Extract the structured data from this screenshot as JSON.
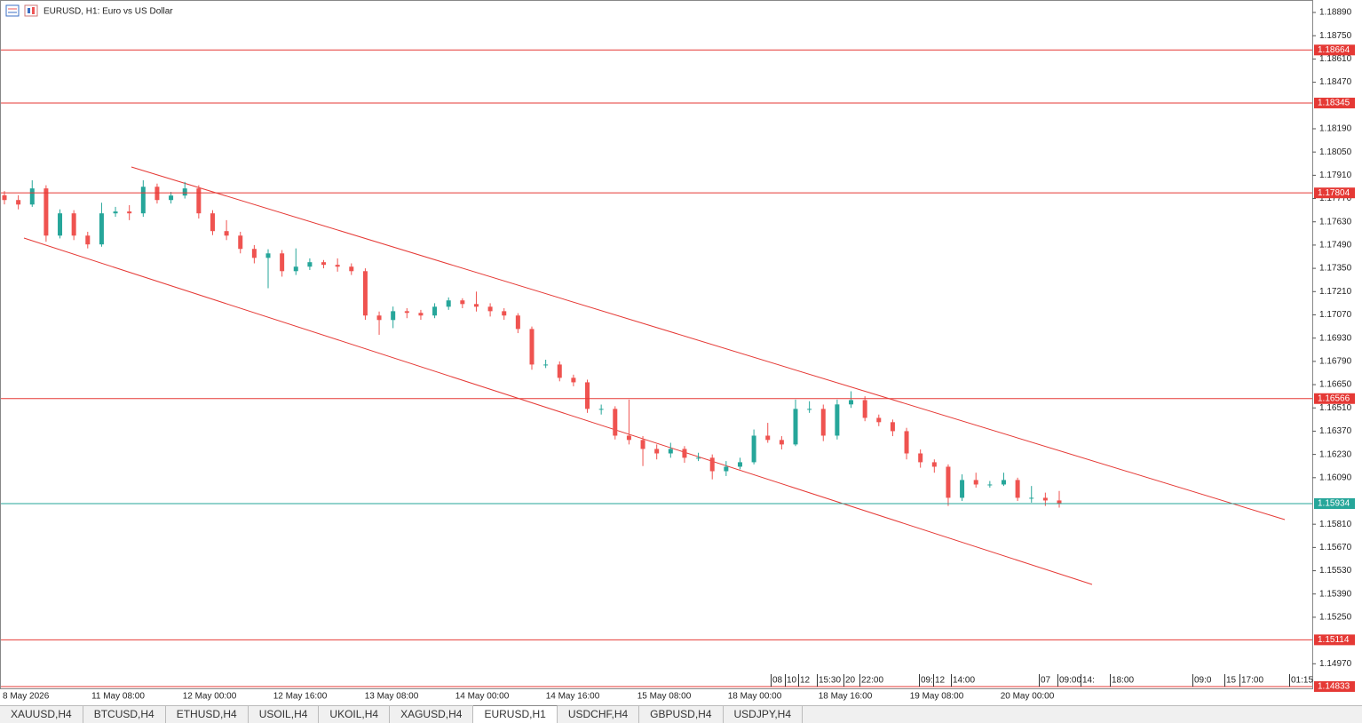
{
  "header": {
    "title": "EURUSD, H1:  Euro vs US Dollar"
  },
  "tabs": [
    "XAUUSD,H4",
    "BTCUSD,H4",
    "ETHUSD,H4",
    "USOIL,H4",
    "UKOIL,H4",
    "XAGUSD,H4",
    "EURUSD,H1",
    "USDCHF,H4",
    "GBPUSD,H4",
    "USDJPY,H4"
  ],
  "active_tab": "EURUSD,H1",
  "chart_data": {
    "type": "candlestick",
    "bull_color": "#26a69a",
    "bear_color": "#ef5350",
    "ylim": [
      1.14822,
      1.18965
    ],
    "yticks": [
      {
        "value": 1.1889,
        "label": "1.18890"
      },
      {
        "value": 1.1875,
        "label": "1.18750"
      },
      {
        "value": 1.1861,
        "label": "1.18610"
      },
      {
        "value": 1.1847,
        "label": "1.18470"
      },
      {
        "value": 1.1819,
        "label": "1.18190"
      },
      {
        "value": 1.1805,
        "label": "1.18050"
      },
      {
        "value": 1.1791,
        "label": "1.17910"
      },
      {
        "value": 1.1777,
        "label": "1.17770"
      },
      {
        "value": 1.1763,
        "label": "1.17630"
      },
      {
        "value": 1.1749,
        "label": "1.17490"
      },
      {
        "value": 1.1735,
        "label": "1.17350"
      },
      {
        "value": 1.1721,
        "label": "1.17210"
      },
      {
        "value": 1.1707,
        "label": "1.17070"
      },
      {
        "value": 1.1693,
        "label": "1.16930"
      },
      {
        "value": 1.1679,
        "label": "1.16790"
      },
      {
        "value": 1.1665,
        "label": "1.16650"
      },
      {
        "value": 1.1651,
        "label": "1.16510"
      },
      {
        "value": 1.1637,
        "label": "1.16370"
      },
      {
        "value": 1.1623,
        "label": "1.16230"
      },
      {
        "value": 1.1609,
        "label": "1.16090"
      },
      {
        "value": 1.1581,
        "label": "1.15810"
      },
      {
        "value": 1.1567,
        "label": "1.15670"
      },
      {
        "value": 1.1553,
        "label": "1.15530"
      },
      {
        "value": 1.1539,
        "label": "1.15390"
      },
      {
        "value": 1.1525,
        "label": "1.15250"
      },
      {
        "value": 1.1497,
        "label": "1.14970"
      }
    ],
    "levels": [
      {
        "value": 1.18664,
        "color": "#e53935"
      },
      {
        "value": 1.18345,
        "color": "#e53935"
      },
      {
        "value": 1.17804,
        "color": "#e53935"
      },
      {
        "value": 1.16566,
        "color": "#e53935"
      },
      {
        "value": 1.15114,
        "color": "#e53935"
      },
      {
        "value": 1.14833,
        "color": "#e53935"
      },
      {
        "value": 1.15934,
        "color": "#26a69a"
      }
    ],
    "x_labels": [
      "8 May 2026",
      "11 May 08:00",
      "12 May 00:00",
      "12 May 16:00",
      "13 May 08:00",
      "14 May 00:00",
      "14 May 16:00",
      "15 May 08:00",
      "18 May 00:00",
      "18 May 16:00",
      "19 May 08:00",
      "20 May 00:00"
    ],
    "time_markers": [
      "08",
      "10",
      "12",
      "15:30",
      "20",
      "22:00",
      "09:",
      "12",
      "14:00",
      "07",
      "09:00",
      "14:",
      "18:00",
      "09:0",
      "15",
      "17:00",
      "01:15"
    ],
    "candles": [
      [
        1.1779,
        1.17815,
        1.17735,
        1.17761
      ],
      [
        1.17761,
        1.1779,
        1.17705,
        1.17734
      ],
      [
        1.17734,
        1.1788,
        1.1772,
        1.17831
      ],
      [
        1.17831,
        1.1785,
        1.1751,
        1.17547
      ],
      [
        1.17547,
        1.17705,
        1.1753,
        1.17681
      ],
      [
        1.17681,
        1.177,
        1.1752,
        1.17547
      ],
      [
        1.17547,
        1.1757,
        1.1747,
        1.17494
      ],
      [
        1.17494,
        1.17745,
        1.1748,
        1.17681
      ],
      [
        1.17681,
        1.1772,
        1.1766,
        1.17692
      ],
      [
        1.17692,
        1.1773,
        1.1764,
        1.17681
      ],
      [
        1.17681,
        1.1788,
        1.1766,
        1.17841
      ],
      [
        1.17841,
        1.1786,
        1.1774,
        1.17761
      ],
      [
        1.17761,
        1.1781,
        1.1774,
        1.17788
      ],
      [
        1.17788,
        1.1787,
        1.1777,
        1.17831
      ],
      [
        1.17831,
        1.1785,
        1.1765,
        1.17681
      ],
      [
        1.17681,
        1.177,
        1.1755,
        1.17574
      ],
      [
        1.17574,
        1.1764,
        1.1752,
        1.17547
      ],
      [
        1.17547,
        1.1757,
        1.1744,
        1.17467
      ],
      [
        1.17467,
        1.1749,
        1.1738,
        1.17413
      ],
      [
        1.17413,
        1.17465,
        1.1723,
        1.1744
      ],
      [
        1.1744,
        1.1746,
        1.173,
        1.17333
      ],
      [
        1.17333,
        1.1747,
        1.1731,
        1.1736
      ],
      [
        1.1736,
        1.1741,
        1.1734,
        1.17387
      ],
      [
        1.17387,
        1.174,
        1.1735,
        1.17371
      ],
      [
        1.17371,
        1.1741,
        1.1733,
        1.1736
      ],
      [
        1.1736,
        1.1738,
        1.1731,
        1.17333
      ],
      [
        1.17333,
        1.1735,
        1.1704,
        1.17066
      ],
      [
        1.17066,
        1.1709,
        1.1695,
        1.17039
      ],
      [
        1.17039,
        1.1712,
        1.1699,
        1.17092
      ],
      [
        1.17092,
        1.1711,
        1.1705,
        1.17082
      ],
      [
        1.17082,
        1.171,
        1.1704,
        1.17066
      ],
      [
        1.17066,
        1.1714,
        1.1705,
        1.17119
      ],
      [
        1.17119,
        1.17175,
        1.171,
        1.17157
      ],
      [
        1.17157,
        1.1717,
        1.1711,
        1.17135
      ],
      [
        1.17135,
        1.1721,
        1.1709,
        1.17119
      ],
      [
        1.17119,
        1.1714,
        1.1706,
        1.17092
      ],
      [
        1.17092,
        1.1711,
        1.1704,
        1.17066
      ],
      [
        1.17066,
        1.1708,
        1.1696,
        1.16985
      ],
      [
        1.16985,
        1.17,
        1.1674,
        1.16771
      ],
      [
        1.16771,
        1.168,
        1.1675,
        1.16771
      ],
      [
        1.16771,
        1.1679,
        1.1667,
        1.16691
      ],
      [
        1.16691,
        1.1671,
        1.1664,
        1.16664
      ],
      [
        1.16664,
        1.1668,
        1.1648,
        1.16504
      ],
      [
        1.16504,
        1.1653,
        1.1647,
        1.16504
      ],
      [
        1.16504,
        1.1652,
        1.1632,
        1.16343
      ],
      [
        1.16343,
        1.1656,
        1.1629,
        1.16317
      ],
      [
        1.16317,
        1.1634,
        1.1616,
        1.16263
      ],
      [
        1.16263,
        1.1629,
        1.162,
        1.16236
      ],
      [
        1.16236,
        1.163,
        1.1621,
        1.16263
      ],
      [
        1.16263,
        1.1628,
        1.1618,
        1.1621
      ],
      [
        1.1621,
        1.1624,
        1.1619,
        1.1621
      ],
      [
        1.1621,
        1.1623,
        1.1608,
        1.16129
      ],
      [
        1.16129,
        1.1619,
        1.161,
        1.16156
      ],
      [
        1.16156,
        1.1621,
        1.1614,
        1.16183
      ],
      [
        1.16183,
        1.1638,
        1.1617,
        1.16343
      ],
      [
        1.16343,
        1.1642,
        1.163,
        1.16317
      ],
      [
        1.16317,
        1.1634,
        1.1626,
        1.1629
      ],
      [
        1.1629,
        1.1656,
        1.1628,
        1.16504
      ],
      [
        1.16504,
        1.1655,
        1.1648,
        1.16504
      ],
      [
        1.16504,
        1.1653,
        1.1631,
        1.16343
      ],
      [
        1.16343,
        1.1656,
        1.1632,
        1.16531
      ],
      [
        1.16531,
        1.1661,
        1.1651,
        1.16557
      ],
      [
        1.16557,
        1.1658,
        1.1643,
        1.1645
      ],
      [
        1.1645,
        1.1647,
        1.164,
        1.16424
      ],
      [
        1.16424,
        1.1644,
        1.1634,
        1.1637
      ],
      [
        1.1637,
        1.1639,
        1.162,
        1.16236
      ],
      [
        1.16236,
        1.1626,
        1.1615,
        1.16183
      ],
      [
        1.16183,
        1.162,
        1.1612,
        1.16156
      ],
      [
        1.16156,
        1.1617,
        1.1592,
        1.15969
      ],
      [
        1.15969,
        1.1611,
        1.1595,
        1.16076
      ],
      [
        1.16076,
        1.1612,
        1.1603,
        1.16049
      ],
      [
        1.16049,
        1.1607,
        1.1603,
        1.16049
      ],
      [
        1.16049,
        1.1612,
        1.1604,
        1.16076
      ],
      [
        1.16076,
        1.1609,
        1.1595,
        1.15969
      ],
      [
        1.15969,
        1.1604,
        1.1594,
        1.15969
      ],
      [
        1.15969,
        1.16,
        1.1592,
        1.15953
      ],
      [
        1.15953,
        1.1601,
        1.1591,
        1.15934
      ]
    ]
  }
}
